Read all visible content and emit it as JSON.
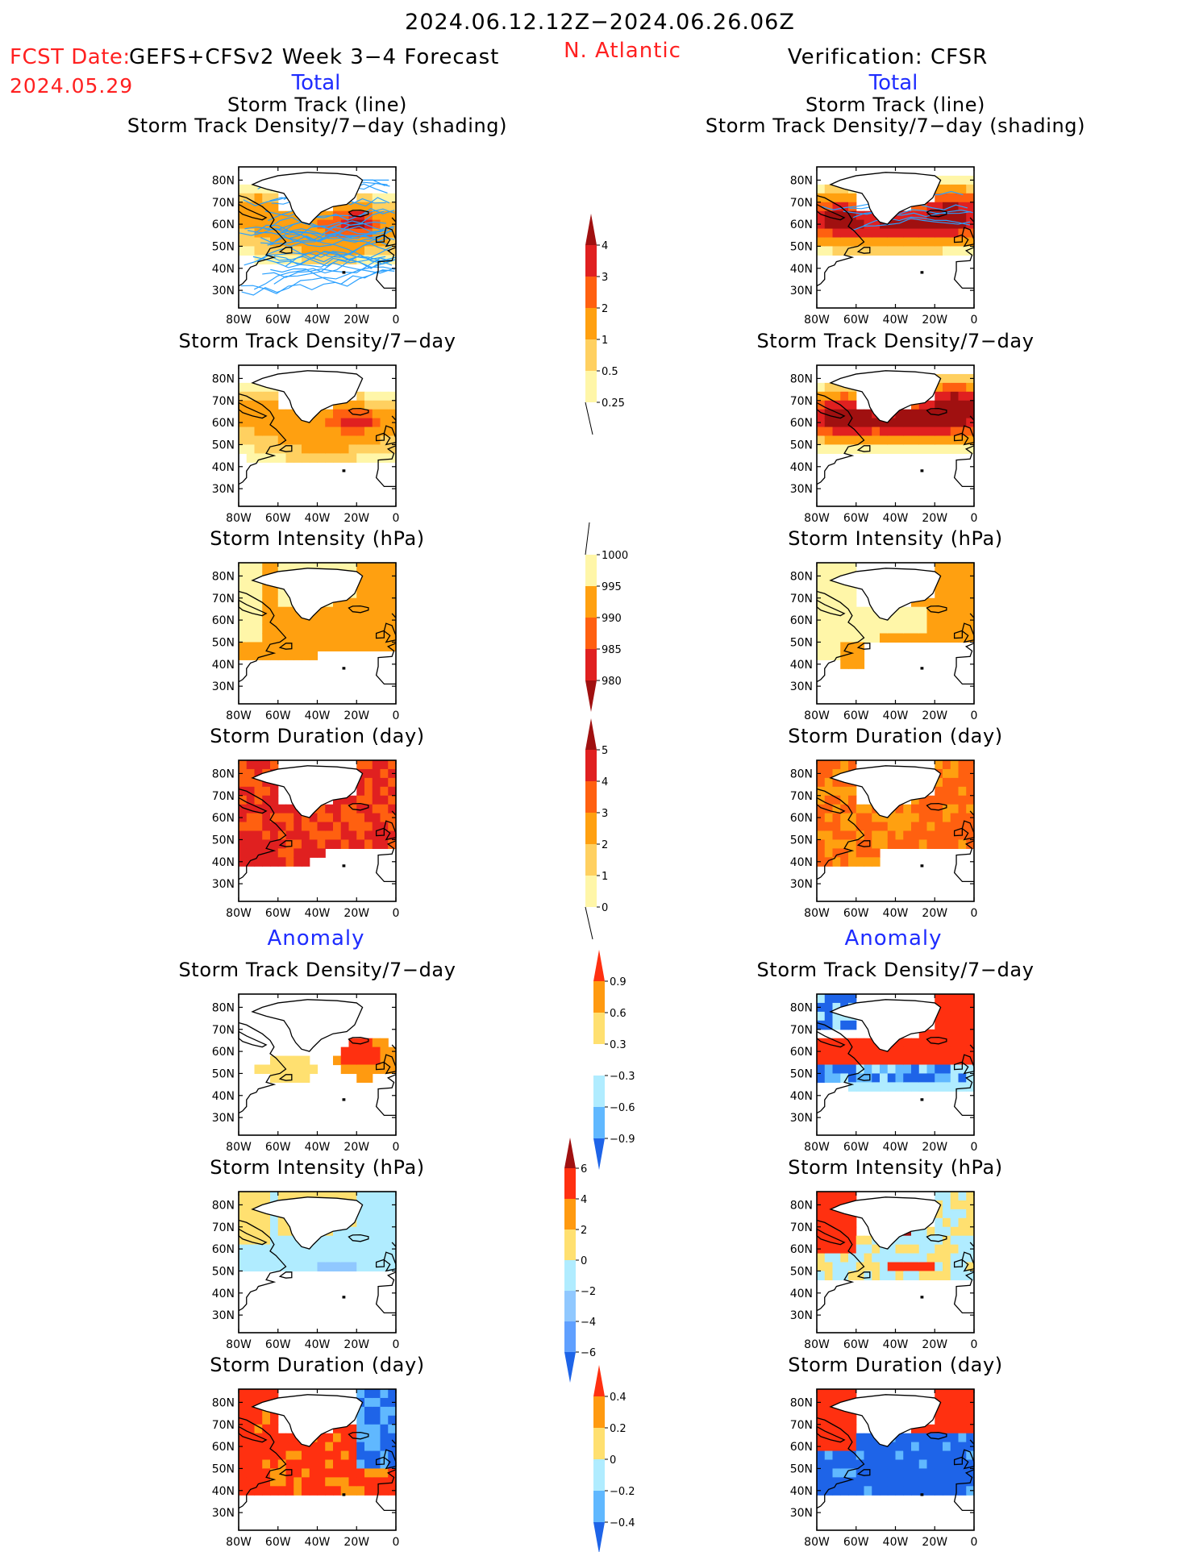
{
  "header": {
    "period": "2024.06.12.12Z−2024.06.26.06Z",
    "fcst_date_label": "FCST Date:",
    "fcst_date": "2024.05.29",
    "forecast_model": "GEFS+CFSv2 Week 3−4 Forecast",
    "region": "N. Atlantic",
    "verification": "Verification: CFSR",
    "left_total": "Total",
    "right_total": "Total",
    "left_anomaly": "Anomaly",
    "right_anomaly": "Anomaly"
  },
  "colors": {
    "title_red": "#ff2020",
    "title_blue": "#1e2cff",
    "track_line": "#2aa0ff",
    "ocean": "#ffffff",
    "land_outline": "#000000"
  },
  "chart_data": [
    {
      "type": "heatmap",
      "side": "forecast",
      "title_line1": "Storm Track (line)",
      "title_line2": "Storm Track Density/7−day (shading)",
      "overlay": "storm tracks (lines)",
      "scale": "density",
      "pattern": "track_fc",
      "xticks": [
        "80W",
        "60W",
        "40W",
        "20W",
        "0"
      ],
      "yticks": [
        "80N",
        "70N",
        "60N",
        "50N",
        "40N",
        "30N"
      ],
      "lon_range": [
        -80,
        0
      ],
      "lat_range": [
        22,
        86
      ]
    },
    {
      "type": "heatmap",
      "side": "verification",
      "title_line1": "Storm Track (line)",
      "title_line2": "Storm Track Density/7−day (shading)",
      "overlay": "storm tracks (lines)",
      "scale": "density",
      "pattern": "track_vf",
      "xticks": [
        "80W",
        "60W",
        "40W",
        "20W",
        "0"
      ],
      "yticks": [
        "80N",
        "70N",
        "60N",
        "50N",
        "40N",
        "30N"
      ],
      "lon_range": [
        -80,
        0
      ],
      "lat_range": [
        22,
        86
      ]
    },
    {
      "type": "heatmap",
      "side": "forecast",
      "title_line1": "Storm Track Density/7−day",
      "scale": "density",
      "pattern": "dens_fc",
      "xticks": [
        "80W",
        "60W",
        "40W",
        "20W",
        "0"
      ],
      "yticks": [
        "80N",
        "70N",
        "60N",
        "50N",
        "40N",
        "30N"
      ],
      "lon_range": [
        -80,
        0
      ],
      "lat_range": [
        22,
        86
      ]
    },
    {
      "type": "heatmap",
      "side": "verification",
      "title_line1": "Storm Track Density/7−day",
      "scale": "density",
      "pattern": "dens_vf",
      "xticks": [
        "80W",
        "60W",
        "40W",
        "20W",
        "0"
      ],
      "yticks": [
        "80N",
        "70N",
        "60N",
        "50N",
        "40N",
        "30N"
      ],
      "lon_range": [
        -80,
        0
      ],
      "lat_range": [
        22,
        86
      ]
    },
    {
      "type": "heatmap",
      "side": "forecast",
      "title_line1": "Storm Intensity (hPa)",
      "scale": "intensity",
      "pattern": "int_fc",
      "xticks": [
        "80W",
        "60W",
        "40W",
        "20W",
        "0"
      ],
      "yticks": [
        "80N",
        "70N",
        "60N",
        "50N",
        "40N",
        "30N"
      ],
      "lon_range": [
        -80,
        0
      ],
      "lat_range": [
        22,
        86
      ]
    },
    {
      "type": "heatmap",
      "side": "verification",
      "title_line1": "Storm Intensity (hPa)",
      "scale": "intensity",
      "pattern": "int_vf",
      "xticks": [
        "80W",
        "60W",
        "40W",
        "20W",
        "0"
      ],
      "yticks": [
        "80N",
        "70N",
        "60N",
        "50N",
        "40N",
        "30N"
      ],
      "lon_range": [
        -80,
        0
      ],
      "lat_range": [
        22,
        86
      ]
    },
    {
      "type": "heatmap",
      "side": "forecast",
      "title_line1": "Storm Duration (day)",
      "scale": "duration",
      "pattern": "dur_fc",
      "xticks": [
        "80W",
        "60W",
        "40W",
        "20W",
        "0"
      ],
      "yticks": [
        "80N",
        "70N",
        "60N",
        "50N",
        "40N",
        "30N"
      ],
      "lon_range": [
        -80,
        0
      ],
      "lat_range": [
        22,
        86
      ]
    },
    {
      "type": "heatmap",
      "side": "verification",
      "title_line1": "Storm Duration (day)",
      "scale": "duration",
      "pattern": "dur_vf",
      "xticks": [
        "80W",
        "60W",
        "40W",
        "20W",
        "0"
      ],
      "yticks": [
        "80N",
        "70N",
        "60N",
        "50N",
        "40N",
        "30N"
      ],
      "lon_range": [
        -80,
        0
      ],
      "lat_range": [
        22,
        86
      ]
    },
    {
      "type": "heatmap",
      "side": "forecast",
      "title_line1": "Storm Track Density/7−day",
      "scale": "dens_anom",
      "pattern": "adens_fc",
      "xticks": [
        "80W",
        "60W",
        "40W",
        "20W",
        "0"
      ],
      "yticks": [
        "80N",
        "70N",
        "60N",
        "50N",
        "40N",
        "30N"
      ],
      "lon_range": [
        -80,
        0
      ],
      "lat_range": [
        22,
        86
      ]
    },
    {
      "type": "heatmap",
      "side": "verification",
      "title_line1": "Storm Track Density/7−day",
      "scale": "dens_anom",
      "pattern": "adens_vf",
      "xticks": [
        "80W",
        "60W",
        "40W",
        "20W",
        "0"
      ],
      "yticks": [
        "80N",
        "70N",
        "60N",
        "50N",
        "40N",
        "30N"
      ],
      "lon_range": [
        -80,
        0
      ],
      "lat_range": [
        22,
        86
      ]
    },
    {
      "type": "heatmap",
      "side": "forecast",
      "title_line1": "Storm Intensity (hPa)",
      "scale": "int_anom",
      "pattern": "aint_fc",
      "xticks": [
        "80W",
        "60W",
        "40W",
        "20W",
        "0"
      ],
      "yticks": [
        "80N",
        "70N",
        "60N",
        "50N",
        "40N",
        "30N"
      ],
      "lon_range": [
        -80,
        0
      ],
      "lat_range": [
        22,
        86
      ]
    },
    {
      "type": "heatmap",
      "side": "verification",
      "title_line1": "Storm Intensity (hPa)",
      "scale": "int_anom",
      "pattern": "aint_vf",
      "xticks": [
        "80W",
        "60W",
        "40W",
        "20W",
        "0"
      ],
      "yticks": [
        "80N",
        "70N",
        "60N",
        "50N",
        "40N",
        "30N"
      ],
      "lon_range": [
        -80,
        0
      ],
      "lat_range": [
        22,
        86
      ]
    },
    {
      "type": "heatmap",
      "side": "forecast",
      "title_line1": "Storm Duration (day)",
      "scale": "dur_anom",
      "pattern": "adur_fc",
      "xticks": [
        "80W",
        "60W",
        "40W",
        "20W",
        "0"
      ],
      "yticks": [
        "80N",
        "70N",
        "60N",
        "50N",
        "40N",
        "30N"
      ],
      "lon_range": [
        -80,
        0
      ],
      "lat_range": [
        22,
        86
      ]
    },
    {
      "type": "heatmap",
      "side": "verification",
      "title_line1": "Storm Duration (day)",
      "scale": "dur_anom",
      "pattern": "adur_vf",
      "xticks": [
        "80W",
        "60W",
        "40W",
        "20W",
        "0"
      ],
      "yticks": [
        "80N",
        "70N",
        "60N",
        "50N",
        "40N",
        "30N"
      ],
      "lon_range": [
        -80,
        0
      ],
      "lat_range": [
        22,
        86
      ]
    }
  ],
  "colorbars": [
    {
      "name": "density",
      "labels": [
        "4",
        "3",
        "2",
        "1",
        "0.5",
        "0.25"
      ],
      "colors": [
        "#a01010",
        "#e02020",
        "#ff6010",
        "#ffa010",
        "#ffd060",
        "#fff6a8"
      ],
      "extend": "max"
    },
    {
      "name": "intensity",
      "labels": [
        "1000",
        "995",
        "990",
        "985",
        "980"
      ],
      "colors": [
        "#fff6a8",
        "#ffa010",
        "#ff6010",
        "#e02020",
        "#a01010"
      ],
      "extend": "min"
    },
    {
      "name": "duration",
      "labels": [
        "5",
        "4",
        "3",
        "2",
        "1",
        "0"
      ],
      "colors": [
        "#a01010",
        "#e02020",
        "#ff6010",
        "#ffa010",
        "#ffd060",
        "#fff6a8"
      ],
      "extend": "max"
    },
    {
      "name": "dens_anom",
      "labels": [
        "0.9",
        "0.6",
        "0.3",
        "−0.3",
        "−0.6",
        "−0.9"
      ],
      "colors": [
        "#ff3010",
        "#ff9a10",
        "#ffe070",
        "#ffffff",
        "#b0ecff",
        "#60b8ff",
        "#1e64e8"
      ],
      "extend": "both"
    },
    {
      "name": "int_anom",
      "labels": [
        "6",
        "4",
        "2",
        "0",
        "−2",
        "−4",
        "−6"
      ],
      "colors": [
        "#a01010",
        "#ff3010",
        "#ff9a10",
        "#ffe070",
        "#b0ecff",
        "#90c8ff",
        "#60a0ff",
        "#1e64e8"
      ],
      "extend": "both"
    },
    {
      "name": "dur_anom",
      "labels": [
        "0.4",
        "0.2",
        "0",
        "−0.2",
        "−0.4"
      ],
      "colors": [
        "#ff3010",
        "#ff9a10",
        "#ffe070",
        "#b0ecff",
        "#60b8ff",
        "#1e64e8"
      ],
      "extend": "both"
    }
  ]
}
